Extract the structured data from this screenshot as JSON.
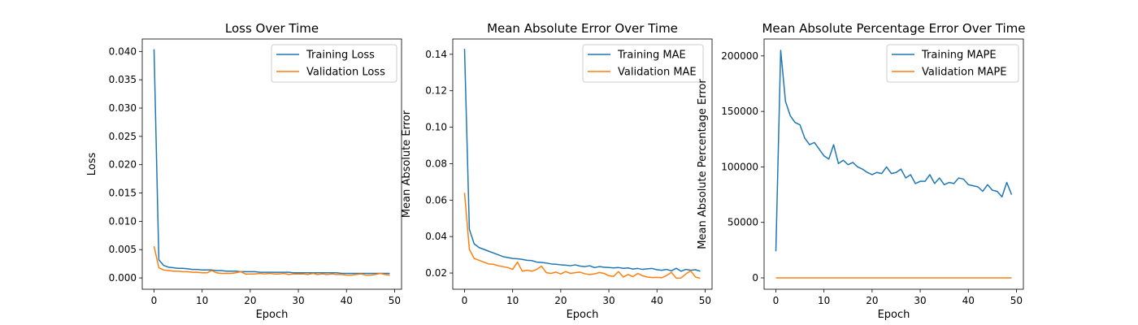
{
  "colors": {
    "training": "#1f77b4",
    "validation": "#ff7f0e"
  },
  "chart_data": [
    {
      "type": "line",
      "title": "Loss Over Time",
      "xlabel": "Epoch",
      "ylabel": "Loss",
      "xlim": [
        -2.45,
        51.45
      ],
      "ylim": [
        -0.002,
        0.0422
      ],
      "xticks": [
        0,
        10,
        20,
        30,
        40,
        50
      ],
      "yticks": [
        0.0,
        0.005,
        0.01,
        0.015,
        0.02,
        0.025,
        0.03,
        0.035,
        0.04
      ],
      "ytick_labels": [
        "0.000",
        "0.005",
        "0.010",
        "0.015",
        "0.020",
        "0.025",
        "0.030",
        "0.035",
        "0.040"
      ],
      "grid": false,
      "legend": "upper-right",
      "x": [
        0,
        1,
        2,
        3,
        4,
        5,
        6,
        7,
        8,
        9,
        10,
        11,
        12,
        13,
        14,
        15,
        16,
        17,
        18,
        19,
        20,
        21,
        22,
        23,
        24,
        25,
        26,
        27,
        28,
        29,
        30,
        31,
        32,
        33,
        34,
        35,
        36,
        37,
        38,
        39,
        40,
        41,
        42,
        43,
        44,
        45,
        46,
        47,
        48,
        49
      ],
      "series": [
        {
          "name": "Training Loss",
          "color_key": "training",
          "values": [
            0.0404,
            0.0032,
            0.0022,
            0.0019,
            0.0018,
            0.0017,
            0.0017,
            0.0016,
            0.0015,
            0.0015,
            0.0014,
            0.0014,
            0.0014,
            0.0013,
            0.0013,
            0.0012,
            0.0012,
            0.0012,
            0.0011,
            0.0011,
            0.0011,
            0.0011,
            0.001,
            0.001,
            0.001,
            0.001,
            0.001,
            0.001,
            0.001,
            0.0009,
            0.0009,
            0.0009,
            0.0009,
            0.0009,
            0.0009,
            0.0009,
            0.0009,
            0.0009,
            0.0009,
            0.0008,
            0.0008,
            0.0008,
            0.0008,
            0.0008,
            0.0008,
            0.0008,
            0.0008,
            0.0008,
            0.0008,
            0.0008
          ]
        },
        {
          "name": "Validation Loss",
          "color_key": "validation",
          "values": [
            0.0056,
            0.0018,
            0.0014,
            0.0013,
            0.0012,
            0.0012,
            0.0011,
            0.0011,
            0.001,
            0.001,
            0.0009,
            0.0009,
            0.0013,
            0.0009,
            0.0008,
            0.0008,
            0.0008,
            0.0009,
            0.0011,
            0.0007,
            0.0007,
            0.0007,
            0.0008,
            0.0007,
            0.0008,
            0.0007,
            0.0007,
            0.0008,
            0.0006,
            0.0007,
            0.0007,
            0.0007,
            0.0006,
            0.0008,
            0.0006,
            0.0007,
            0.0006,
            0.0007,
            0.0006,
            0.0006,
            0.0005,
            0.0005,
            0.0006,
            0.0007,
            0.0005,
            0.0005,
            0.0006,
            0.0008,
            0.0006,
            0.0005
          ]
        }
      ]
    },
    {
      "type": "line",
      "title": "Mean Absolute Error Over Time",
      "xlabel": "Epoch",
      "ylabel": "Mean Absolute Error",
      "xlim": [
        -2.45,
        51.45
      ],
      "ylim": [
        0.0111,
        0.1484
      ],
      "xticks": [
        0,
        10,
        20,
        30,
        40,
        50
      ],
      "yticks": [
        0.02,
        0.04,
        0.06,
        0.08,
        0.1,
        0.12,
        0.14
      ],
      "ytick_labels": [
        "0.02",
        "0.04",
        "0.06",
        "0.08",
        "0.10",
        "0.12",
        "0.14"
      ],
      "grid": false,
      "legend": "upper-right",
      "x": [
        0,
        1,
        2,
        3,
        4,
        5,
        6,
        7,
        8,
        9,
        10,
        11,
        12,
        13,
        14,
        15,
        16,
        17,
        18,
        19,
        20,
        21,
        22,
        23,
        24,
        25,
        26,
        27,
        28,
        29,
        30,
        31,
        32,
        33,
        34,
        35,
        36,
        37,
        38,
        39,
        40,
        41,
        42,
        43,
        44,
        45,
        46,
        47,
        48,
        49
      ],
      "series": [
        {
          "name": "Training MAE",
          "color_key": "training",
          "values": [
            0.143,
            0.044,
            0.036,
            0.034,
            0.033,
            0.032,
            0.031,
            0.03,
            0.029,
            0.0285,
            0.028,
            0.0278,
            0.0275,
            0.027,
            0.0268,
            0.026,
            0.0258,
            0.0255,
            0.025,
            0.0248,
            0.0245,
            0.0243,
            0.024,
            0.0245,
            0.0238,
            0.0235,
            0.024,
            0.023,
            0.0235,
            0.0232,
            0.023,
            0.0228,
            0.023,
            0.0226,
            0.0228,
            0.0222,
            0.0225,
            0.022,
            0.0223,
            0.0225,
            0.0218,
            0.0215,
            0.022,
            0.0212,
            0.0226,
            0.021,
            0.022,
            0.0215,
            0.0218,
            0.021
          ]
        },
        {
          "name": "Validation MAE",
          "color_key": "validation",
          "values": [
            0.064,
            0.033,
            0.028,
            0.027,
            0.026,
            0.025,
            0.0248,
            0.024,
            0.0235,
            0.023,
            0.022,
            0.026,
            0.021,
            0.0215,
            0.021,
            0.022,
            0.0238,
            0.0202,
            0.0198,
            0.0205,
            0.0195,
            0.0208,
            0.0198,
            0.0202,
            0.0205,
            0.0196,
            0.0192,
            0.0195,
            0.0203,
            0.0198,
            0.0185,
            0.0182,
            0.0208,
            0.0178,
            0.0192,
            0.018,
            0.0198,
            0.0185,
            0.0178,
            0.0175,
            0.0176,
            0.0174,
            0.0186,
            0.0204,
            0.0172,
            0.0173,
            0.0195,
            0.0212,
            0.0178,
            0.0171
          ]
        }
      ]
    },
    {
      "type": "line",
      "title": "Mean Absolute Percentage Error Over Time",
      "xlabel": "Epoch",
      "ylabel": "Mean Absolute Percentage Error",
      "xlim": [
        -2.45,
        51.45
      ],
      "ylim": [
        -10250,
        215250
      ],
      "xticks": [
        0,
        10,
        20,
        30,
        40,
        50
      ],
      "yticks": [
        0,
        50000,
        100000,
        150000,
        200000
      ],
      "ytick_labels": [
        "0",
        "50000",
        "100000",
        "150000",
        "200000"
      ],
      "grid": false,
      "legend": "upper-right",
      "x": [
        0,
        1,
        2,
        3,
        4,
        5,
        6,
        7,
        8,
        9,
        10,
        11,
        12,
        13,
        14,
        15,
        16,
        17,
        18,
        19,
        20,
        21,
        22,
        23,
        24,
        25,
        26,
        27,
        28,
        29,
        30,
        31,
        32,
        33,
        34,
        35,
        36,
        37,
        38,
        39,
        40,
        41,
        42,
        43,
        44,
        45,
        46,
        47,
        48,
        49
      ],
      "series": [
        {
          "name": "Training MAPE",
          "color_key": "training",
          "values": [
            24000,
            205000,
            159000,
            146000,
            140000,
            138000,
            126000,
            120000,
            122000,
            116000,
            110000,
            107000,
            120000,
            103000,
            106000,
            102000,
            104000,
            100000,
            98000,
            95000,
            93000,
            95000,
            94000,
            100000,
            94000,
            95000,
            98000,
            90000,
            93000,
            85000,
            87000,
            87000,
            93000,
            85000,
            90000,
            84000,
            86000,
            85000,
            90000,
            89000,
            84000,
            83000,
            82000,
            78000,
            84000,
            79000,
            78000,
            73000,
            86000,
            75000
          ]
        },
        {
          "name": "Validation MAPE",
          "color_key": "validation",
          "values": [
            0,
            0,
            0,
            0,
            0,
            0,
            0,
            0,
            0,
            0,
            0,
            0,
            0,
            0,
            0,
            0,
            0,
            0,
            0,
            0,
            0,
            0,
            0,
            0,
            0,
            0,
            0,
            0,
            0,
            0,
            0,
            0,
            0,
            0,
            0,
            0,
            0,
            0,
            0,
            0,
            0,
            0,
            0,
            0,
            0,
            0,
            0,
            0,
            0,
            0
          ]
        }
      ]
    }
  ]
}
